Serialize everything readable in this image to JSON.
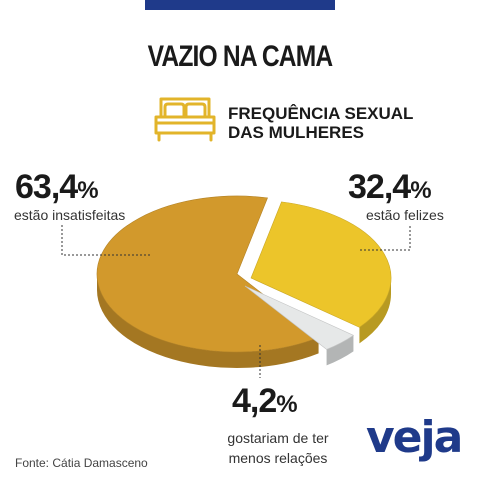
{
  "title": "VAZIO NA CAMA",
  "subtitle": [
    "FREQUÊNCIA SEXUAL",
    "DAS MULHERES"
  ],
  "bed_icon": "bed-icon",
  "chart_data": {
    "type": "pie",
    "slices": [
      {
        "value": 63.4,
        "value_label": "63,4",
        "unit": "%",
        "label": "estão insatisfeitas",
        "color": "#d2992c"
      },
      {
        "value": 32.4,
        "value_label": "32,4",
        "unit": "%",
        "label": "estão felizes",
        "color": "#ecc52a"
      },
      {
        "value": 4.2,
        "value_label": "4,2",
        "unit": "%",
        "label": "gostariam de ter menos relações",
        "label_lines": [
          "gostariam de ter",
          "menos relações"
        ],
        "color": "#e6e8e8"
      }
    ]
  },
  "source": "Fonte: Cátia Damasceno",
  "brand": "veja",
  "colors": {
    "accent": "#1f3a8a",
    "text": "#1a1a1a"
  }
}
